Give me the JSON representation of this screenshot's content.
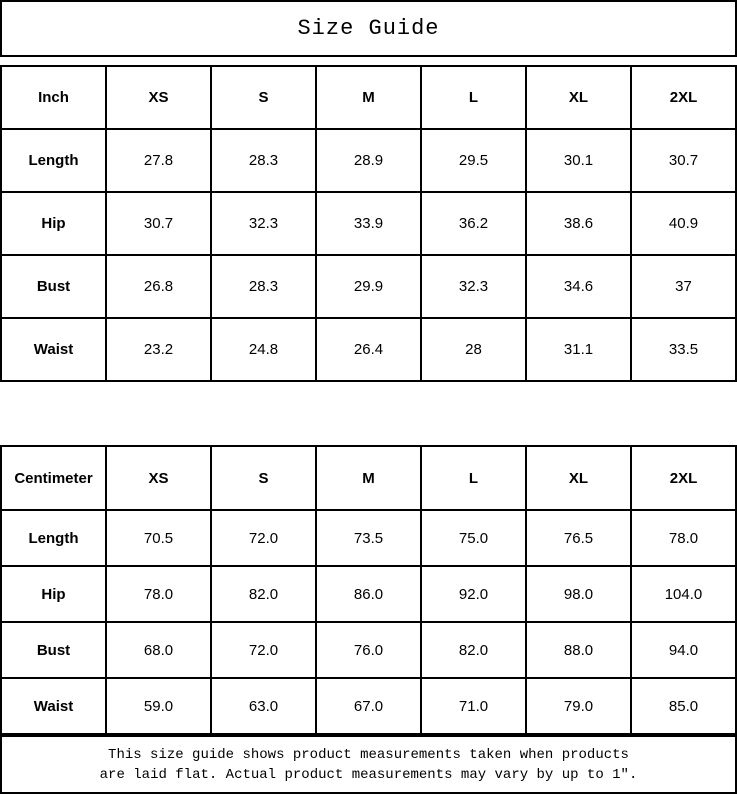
{
  "title": "Size Guide",
  "tables": [
    {
      "unit_label": "Inch",
      "columns": [
        "XS",
        "S",
        "M",
        "L",
        "XL",
        "2XL"
      ],
      "rows": [
        {
          "label": "Length",
          "values": [
            "27.8",
            "28.3",
            "28.9",
            "29.5",
            "30.1",
            "30.7"
          ]
        },
        {
          "label": "Hip",
          "values": [
            "30.7",
            "32.3",
            "33.9",
            "36.2",
            "38.6",
            "40.9"
          ]
        },
        {
          "label": "Bust",
          "values": [
            "26.8",
            "28.3",
            "29.9",
            "32.3",
            "34.6",
            "37"
          ]
        },
        {
          "label": "Waist",
          "values": [
            "23.2",
            "24.8",
            "26.4",
            "28",
            "31.1",
            "33.5"
          ]
        }
      ]
    },
    {
      "unit_label": "Centimeter",
      "columns": [
        "XS",
        "S",
        "M",
        "L",
        "XL",
        "2XL"
      ],
      "rows": [
        {
          "label": "Length",
          "values": [
            "70.5",
            "72.0",
            "73.5",
            "75.0",
            "76.5",
            "78.0"
          ]
        },
        {
          "label": "Hip",
          "values": [
            "78.0",
            "82.0",
            "86.0",
            "92.0",
            "98.0",
            "104.0"
          ]
        },
        {
          "label": "Bust",
          "values": [
            "68.0",
            "72.0",
            "76.0",
            "82.0",
            "88.0",
            "94.0"
          ]
        },
        {
          "label": "Waist",
          "values": [
            "59.0",
            "63.0",
            "67.0",
            "71.0",
            "79.0",
            "85.0"
          ]
        }
      ]
    }
  ],
  "footer": {
    "line1": "This size guide shows product measurements taken when products",
    "line2": "are laid flat. Actual product measurements may vary by up to 1″."
  },
  "colors": {
    "border": "#000000",
    "background": "#ffffff",
    "text": "#000000"
  }
}
